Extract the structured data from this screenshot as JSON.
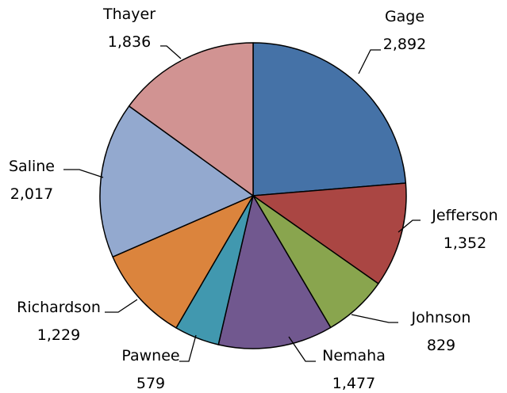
{
  "chart_data": {
    "type": "pie",
    "title": "",
    "start": "top-clockwise",
    "slices": [
      {
        "label": "Gage",
        "value_text": "2,892",
        "value": 2892,
        "color": "#4572A7"
      },
      {
        "label": "Jefferson",
        "value_text": "1,352",
        "value": 1352,
        "color": "#AA4643"
      },
      {
        "label": "Johnson",
        "value_text": "829",
        "value": 829,
        "color": "#89A54E"
      },
      {
        "label": "Nemaha",
        "value_text": "1,477",
        "value": 1477,
        "color": "#71588F"
      },
      {
        "label": "Pawnee",
        "value_text": "579",
        "value": 579,
        "color": "#4198AF"
      },
      {
        "label": "Richardson",
        "value_text": "1,229",
        "value": 1229,
        "color": "#DB843D"
      },
      {
        "label": "Saline",
        "value_text": "2,017",
        "value": 2017,
        "color": "#93A9CF"
      },
      {
        "label": "Thayer",
        "value_text": "1,836",
        "value": 1836,
        "color": "#D19392"
      }
    ]
  }
}
